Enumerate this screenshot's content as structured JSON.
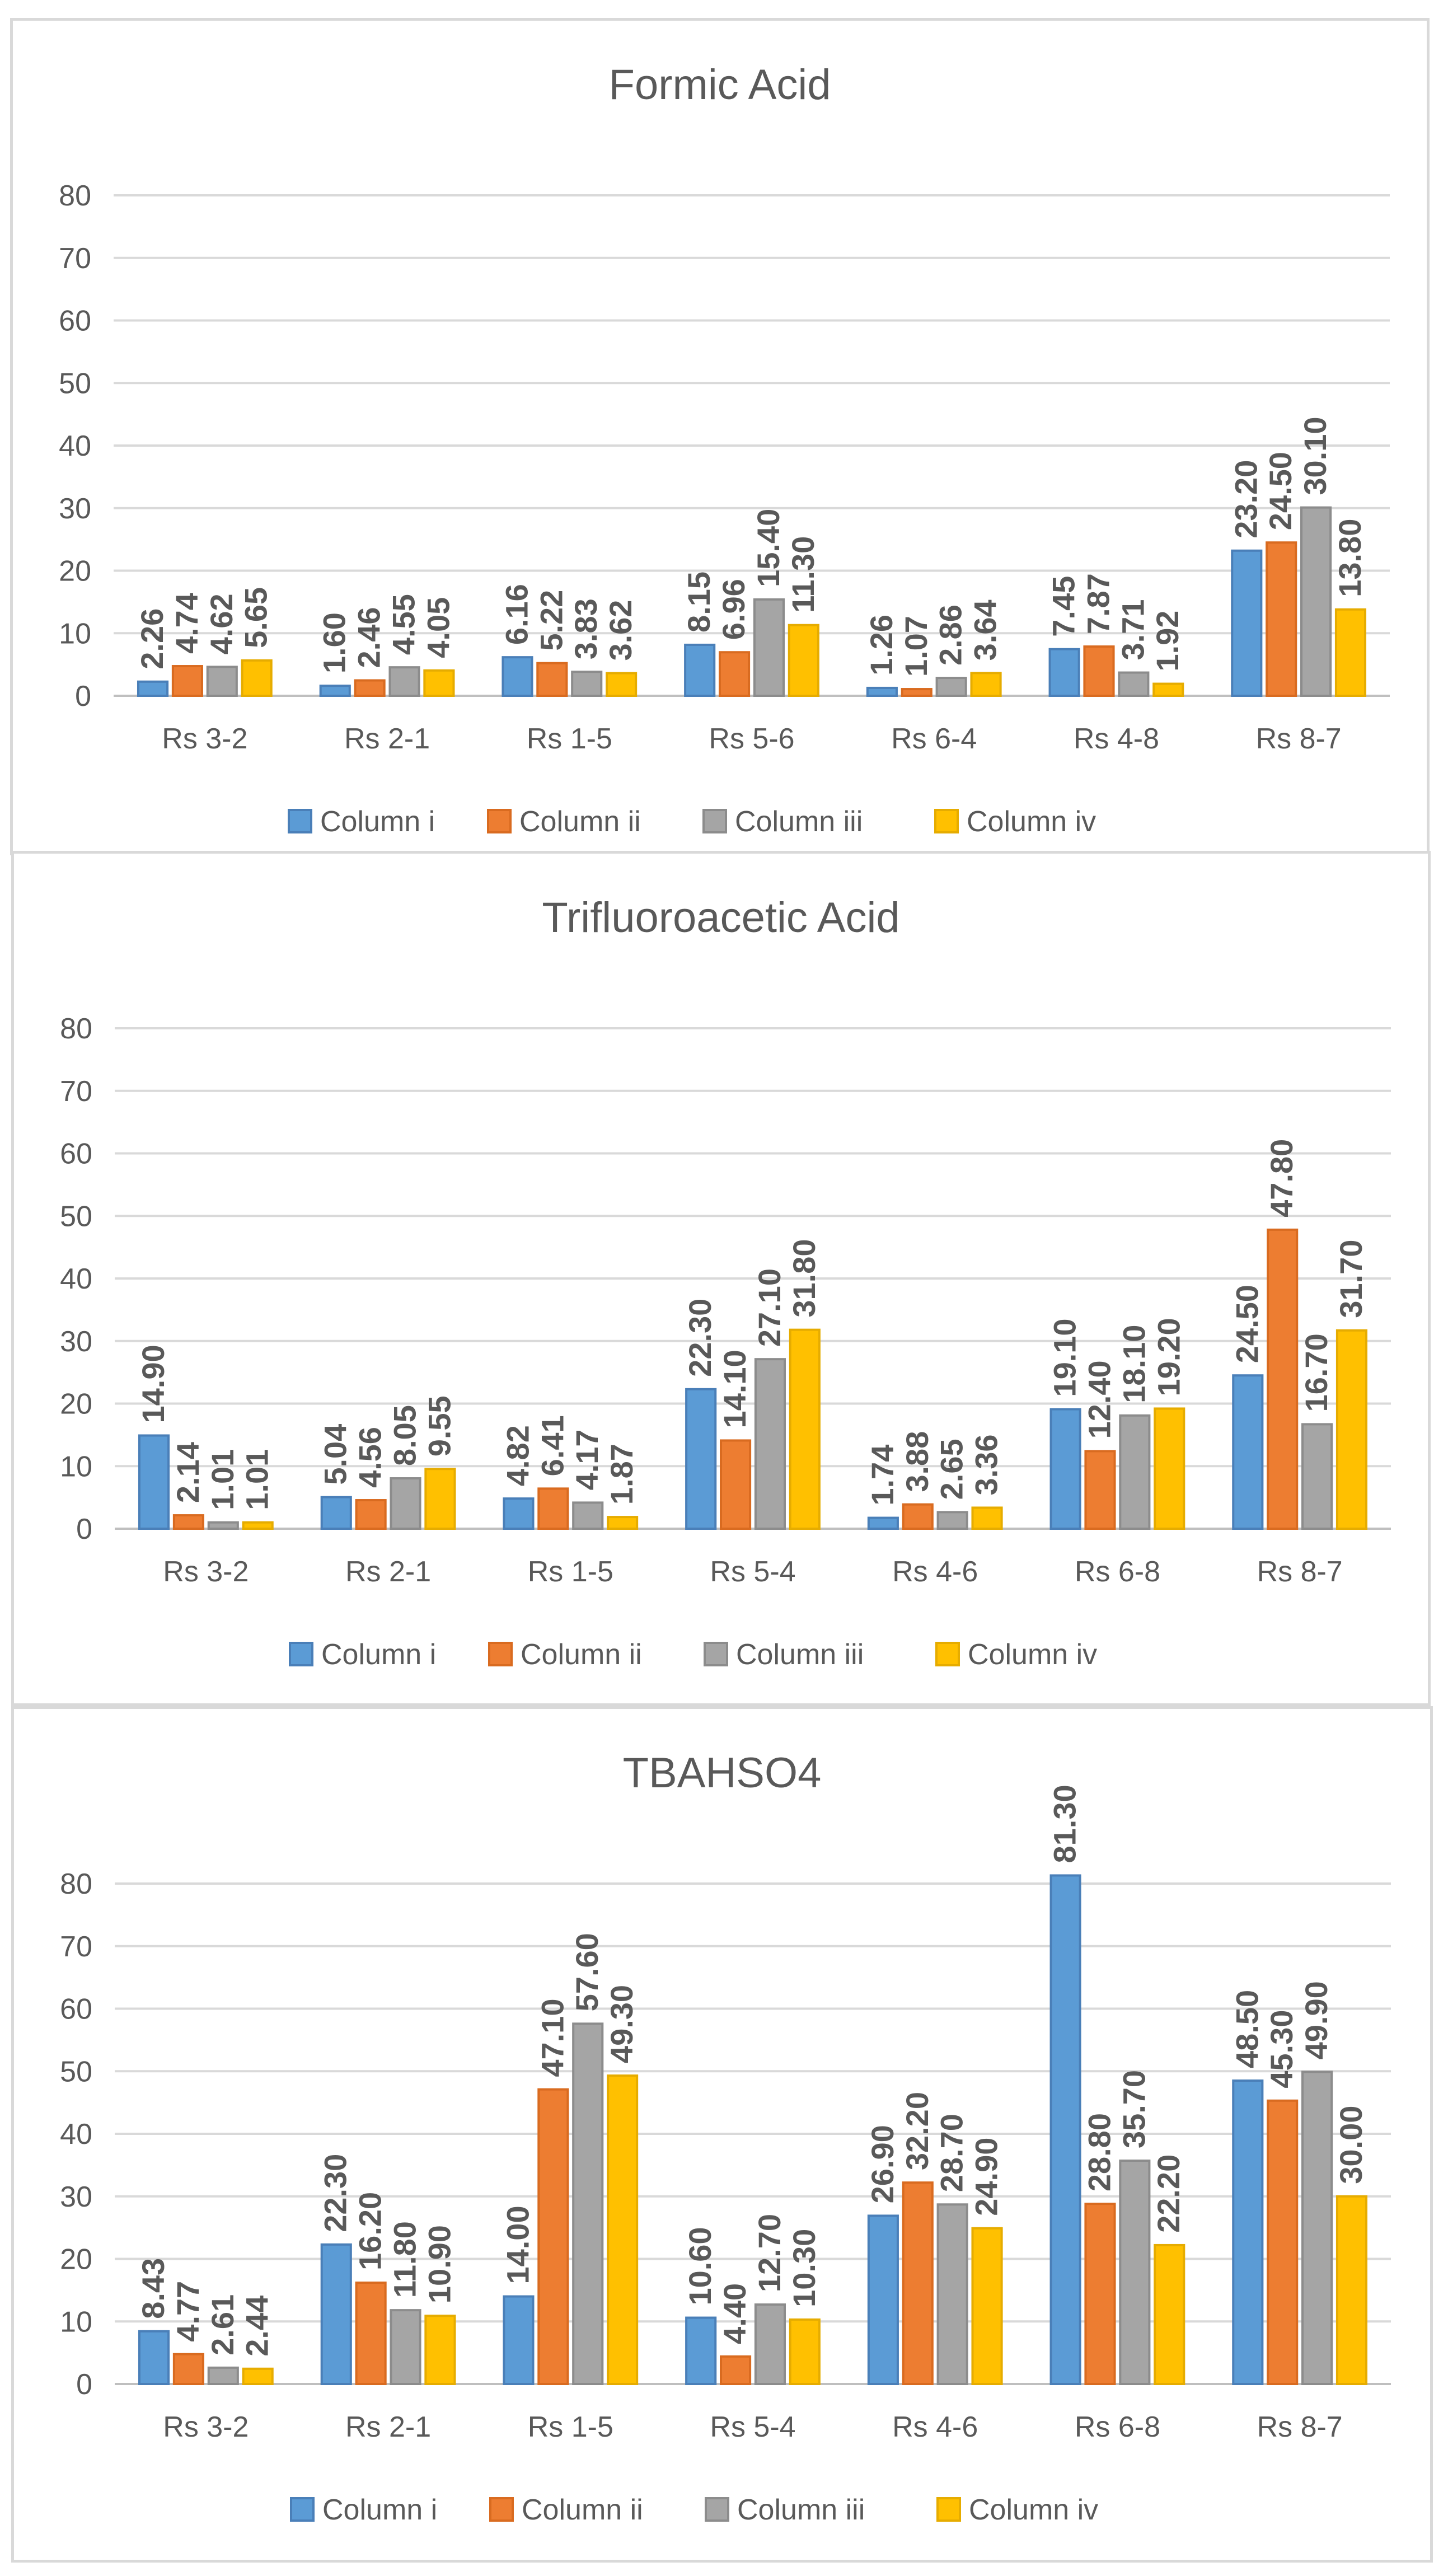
{
  "colors": {
    "series": [
      "#5b9bd5",
      "#ed7d31",
      "#a5a5a5",
      "#ffc000"
    ],
    "series_stroke": [
      "#4a7fb8",
      "#d96b20",
      "#8c8c8c",
      "#e6ac00"
    ],
    "panel_border": "#d9d9d9",
    "text": "#595959"
  },
  "chart_data": [
    {
      "type": "bar",
      "title": "Formic Acid",
      "categories": [
        "Rs 3-2",
        "Rs 2-1",
        "Rs 1-5",
        "Rs 5-6",
        "Rs 6-4",
        "Rs 4-8",
        "Rs 8-7"
      ],
      "series": [
        {
          "name": "Column i",
          "values": [
            2.26,
            1.6,
            6.16,
            8.15,
            1.26,
            7.45,
            23.2
          ],
          "labels": [
            "2.26",
            "1.60",
            "6.16",
            "8.15",
            "1.26",
            "7.45",
            "23.20"
          ]
        },
        {
          "name": "Column ii",
          "values": [
            4.74,
            2.46,
            5.22,
            6.96,
            1.07,
            7.87,
            24.5
          ],
          "labels": [
            "4.74",
            "2.46",
            "5.22",
            "6.96",
            "1.07",
            "7.87",
            "24.50"
          ]
        },
        {
          "name": "Column iii",
          "values": [
            4.62,
            4.55,
            3.83,
            15.4,
            2.86,
            3.71,
            30.1
          ],
          "labels": [
            "4.62",
            "4.55",
            "3.83",
            "15.40",
            "2.86",
            "3.71",
            "30.10"
          ]
        },
        {
          "name": "Column iv",
          "values": [
            5.65,
            4.05,
            3.62,
            11.3,
            3.64,
            1.92,
            13.8
          ],
          "labels": [
            "5.65",
            "4.05",
            "3.62",
            "11.30",
            "3.64",
            "1.92",
            "13.80"
          ]
        }
      ],
      "ylim": [
        0,
        80
      ],
      "yticks": [
        "0",
        "10",
        "20",
        "30",
        "40",
        "50",
        "60",
        "70",
        "80"
      ],
      "grid": true,
      "legend": "bottom"
    },
    {
      "type": "bar",
      "title": "Trifluoroacetic Acid",
      "categories": [
        "Rs 3-2",
        "Rs 2-1",
        "Rs 1-5",
        "Rs 5-4",
        "Rs 4-6",
        "Rs 6-8",
        "Rs 8-7"
      ],
      "series": [
        {
          "name": "Column i",
          "values": [
            14.9,
            5.04,
            4.82,
            22.3,
            1.74,
            19.1,
            24.5
          ],
          "labels": [
            "14.90",
            "5.04",
            "4.82",
            "22.30",
            "1.74",
            "19.10",
            "24.50"
          ]
        },
        {
          "name": "Column ii",
          "values": [
            2.14,
            4.56,
            6.41,
            14.1,
            3.88,
            12.4,
            47.8
          ],
          "labels": [
            "2.14",
            "4.56",
            "6.41",
            "14.10",
            "3.88",
            "12.40",
            "47.80"
          ]
        },
        {
          "name": "Column iii",
          "values": [
            1.01,
            8.05,
            4.17,
            27.1,
            2.65,
            18.1,
            16.7
          ],
          "labels": [
            "1.01",
            "8.05",
            "4.17",
            "27.10",
            "2.65",
            "18.10",
            "16.70"
          ]
        },
        {
          "name": "Column iv",
          "values": [
            1.01,
            9.55,
            1.87,
            31.8,
            3.36,
            19.2,
            31.7
          ],
          "labels": [
            "1.01",
            "9.55",
            "1.87",
            "31.80",
            "3.36",
            "19.20",
            "31.70"
          ]
        }
      ],
      "ylim": [
        0,
        80
      ],
      "yticks": [
        "0",
        "10",
        "20",
        "30",
        "40",
        "50",
        "60",
        "70",
        "80"
      ],
      "grid": true,
      "legend": "bottom"
    },
    {
      "type": "bar",
      "title": "TBAHSO4",
      "categories": [
        "Rs 3-2",
        "Rs 2-1",
        "Rs 1-5",
        "Rs 5-4",
        "Rs 4-6",
        "Rs 6-8",
        "Rs 8-7"
      ],
      "series": [
        {
          "name": "Column i",
          "values": [
            8.43,
            22.3,
            14.0,
            10.6,
            26.9,
            81.3,
            48.5
          ],
          "labels": [
            "8.43",
            "22.30",
            "14.00",
            "10.60",
            "26.90",
            "81.30",
            "48.50"
          ]
        },
        {
          "name": "Column ii",
          "values": [
            4.77,
            16.2,
            47.1,
            4.4,
            32.2,
            28.8,
            45.3
          ],
          "labels": [
            "4.77",
            "16.20",
            "47.10",
            "4.40",
            "32.20",
            "28.80",
            "45.30"
          ]
        },
        {
          "name": "Column iii",
          "values": [
            2.61,
            11.8,
            57.6,
            12.7,
            28.7,
            35.7,
            49.9
          ],
          "labels": [
            "2.61",
            "11.80",
            "57.60",
            "12.70",
            "28.70",
            "35.70",
            "49.90"
          ]
        },
        {
          "name": "Column iv",
          "values": [
            2.44,
            10.9,
            49.3,
            10.3,
            24.9,
            22.2,
            30.0
          ],
          "labels": [
            "2.44",
            "10.90",
            "49.30",
            "10.30",
            "24.90",
            "22.20",
            "30.00"
          ]
        }
      ],
      "ylim": [
        0,
        80
      ],
      "yticks": [
        "0",
        "10",
        "20",
        "30",
        "40",
        "50",
        "60",
        "70",
        "80"
      ],
      "grid": true,
      "legend": "bottom"
    }
  ]
}
